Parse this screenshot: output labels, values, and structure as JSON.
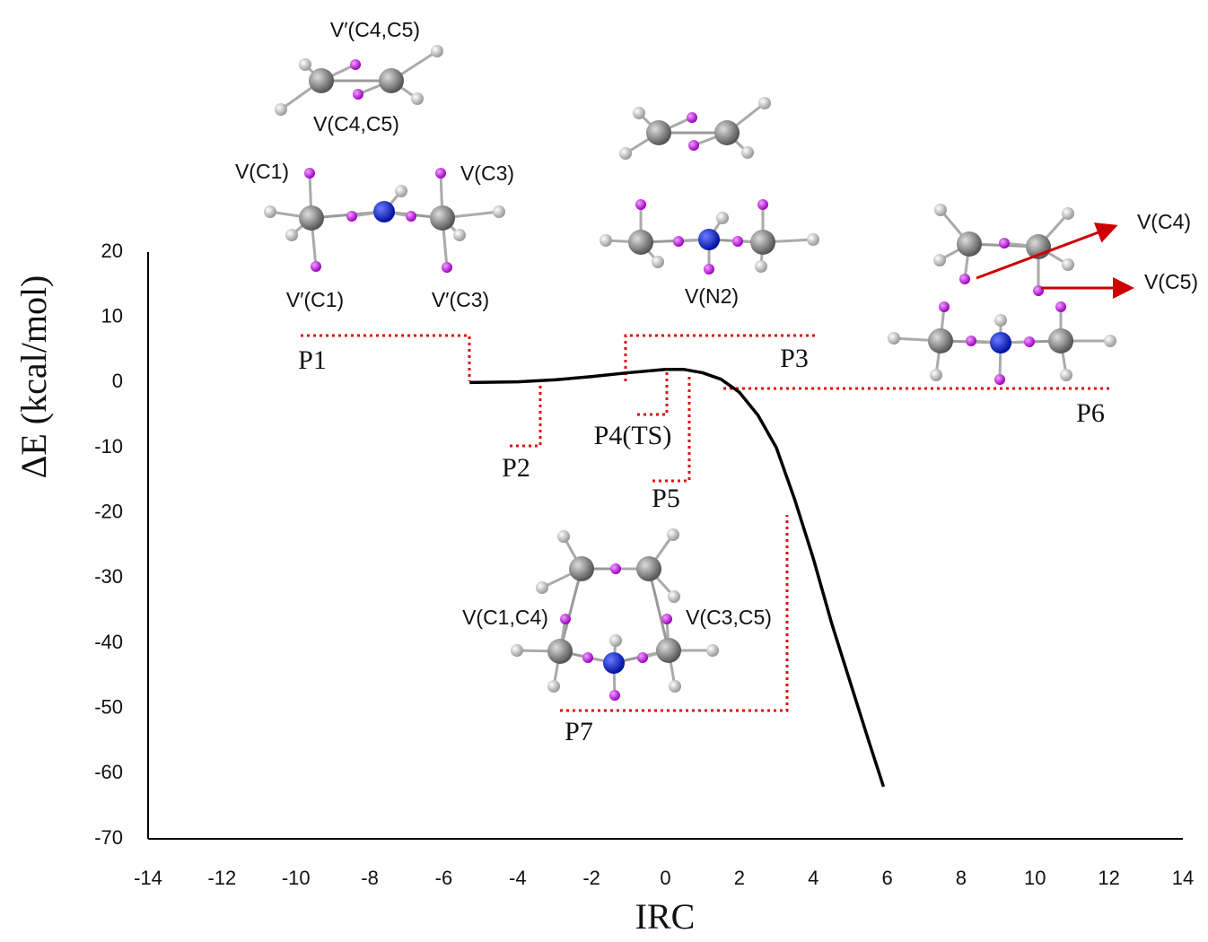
{
  "chart_data": {
    "type": "line",
    "x_label": "IRC",
    "y_label": "ΔE (kcal/mol)",
    "xlim": [
      -14,
      14
    ],
    "xticks": [
      -14,
      -12,
      -10,
      -8,
      -6,
      -4,
      -2,
      0,
      2,
      4,
      6,
      8,
      10,
      12,
      14
    ],
    "ylim": [
      -70,
      20
    ],
    "yticks": [
      -70,
      -60,
      -50,
      -40,
      -30,
      -20,
      -10,
      0,
      10,
      20
    ],
    "grid": false,
    "series": [
      {
        "color": "#000000",
        "x": [
          -5.3,
          -4,
          -3,
          -2,
          -1,
          0,
          0.5,
          1,
          1.5,
          2,
          2.5,
          3,
          3.5,
          4,
          4.5,
          5,
          5.5,
          5.9
        ],
        "values": [
          0,
          0.1,
          0.4,
          0.9,
          1.5,
          2.0,
          2.0,
          1.5,
          0.5,
          -1.5,
          -5,
          -10,
          -18,
          -27,
          -37,
          -46,
          -55,
          -62
        ]
      }
    ],
    "annotations": [
      "P1",
      "P2",
      "P3",
      "P4(TS)",
      "P5",
      "P6",
      "P7",
      "V′(C4,C5)",
      "V(C4,C5)",
      "V(C1)",
      "V(C3)",
      "V′(C1)",
      "V′(C3)",
      "V(N2)",
      "V(C4)",
      "V(C5)",
      "V(C1,C4)",
      "V(C3,C5)"
    ]
  }
}
